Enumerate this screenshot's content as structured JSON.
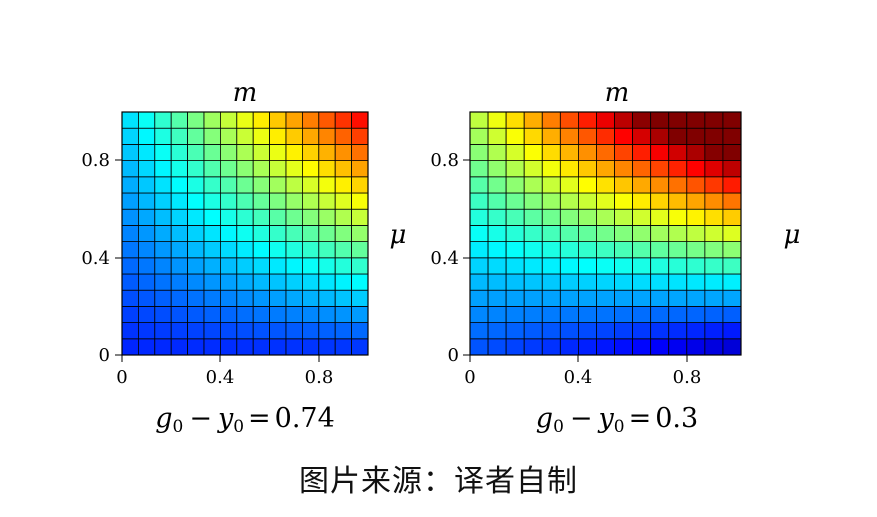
{
  "chart_data": [
    {
      "type": "heatmap",
      "title": "",
      "xlabel": "m",
      "ylabel": "μ",
      "xlim": [
        0,
        1
      ],
      "ylim": [
        0,
        1
      ],
      "xticks": [
        "0",
        "0.4",
        "0.8"
      ],
      "yticks": [
        "0",
        "0.4",
        "0.8"
      ],
      "grid_cells": 15,
      "colormap": "jet",
      "caption": {
        "g": "g",
        "g_sub": "0",
        "minus": "−",
        "y": "y",
        "y_sub": "0",
        "eq": "=",
        "value": "0.74"
      }
    },
    {
      "type": "heatmap",
      "title": "",
      "xlabel": "m",
      "ylabel": "μ",
      "xlim": [
        0,
        1
      ],
      "ylim": [
        0,
        1
      ],
      "xticks": [
        "0",
        "0.4",
        "0.8"
      ],
      "yticks": [
        "0",
        "0.4",
        "0.8"
      ],
      "grid_cells": 15,
      "colormap": "jet",
      "caption": {
        "g": "g",
        "g_sub": "0",
        "minus": "−",
        "y": "y",
        "y_sub": "0",
        "eq": "=",
        "value": "0.3"
      }
    }
  ],
  "source_text": "图片来源：译者自制"
}
